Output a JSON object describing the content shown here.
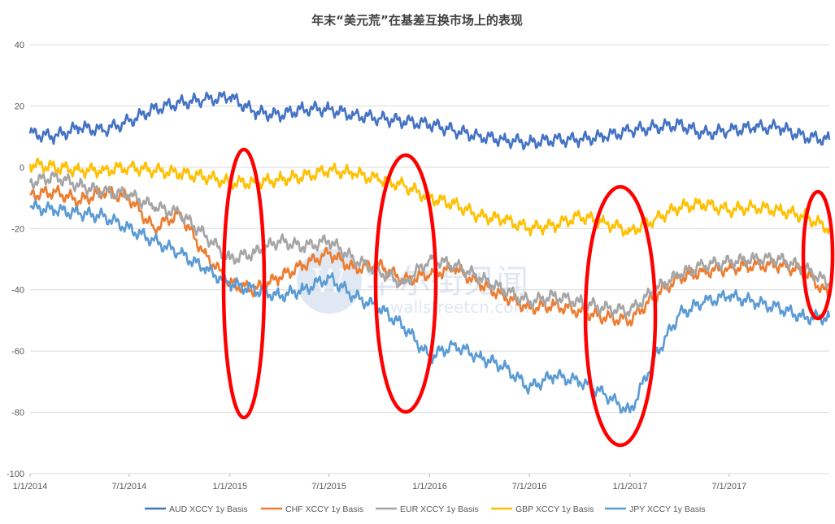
{
  "chart_data": {
    "type": "line",
    "title": "年末“美元荒”在基差互换市场上的表现",
    "xlabel": "",
    "ylabel": "",
    "ylim": [
      -100,
      40
    ],
    "yticks": [
      40,
      20,
      0,
      -20,
      -40,
      -60,
      -80,
      -100
    ],
    "xlim": [
      "2014-01-01",
      "2017-12-31"
    ],
    "xticks": [
      "1/1/2014",
      "7/1/2014",
      "1/1/2015",
      "7/1/2015",
      "1/1/2016",
      "7/1/2016",
      "1/1/2017",
      "7/1/2017"
    ],
    "x": [
      "2014-01-01",
      "2014-02-15",
      "2014-04-01",
      "2014-05-15",
      "2014-07-01",
      "2014-08-15",
      "2014-10-01",
      "2014-11-15",
      "2015-01-01",
      "2015-02-15",
      "2015-04-01",
      "2015-05-15",
      "2015-07-01",
      "2015-08-15",
      "2015-10-01",
      "2015-11-15",
      "2016-01-01",
      "2016-02-15",
      "2016-04-01",
      "2016-05-15",
      "2016-07-01",
      "2016-08-15",
      "2016-10-01",
      "2016-11-15",
      "2017-01-01",
      "2017-02-15",
      "2017-04-01",
      "2017-05-15",
      "2017-07-01",
      "2017-08-15",
      "2017-10-01",
      "2017-11-15",
      "2017-12-31"
    ],
    "grid": true,
    "legend_position": "bottom",
    "series": [
      {
        "name": "AUD XCCY 1y Basis",
        "color": "#4472c4",
        "values": [
          11,
          10,
          13,
          12,
          15,
          19,
          21,
          22,
          23,
          18,
          17,
          19,
          19,
          17,
          16,
          15,
          14,
          12,
          10,
          9,
          8,
          9,
          9,
          10,
          12,
          13,
          14,
          11,
          12,
          13,
          13,
          10,
          9
        ]
      },
      {
        "name": "CHF XCCY 1y Basis",
        "color": "#ed7d31",
        "values": [
          -9,
          -8,
          -11,
          -8,
          -10,
          -20,
          -15,
          -28,
          -38,
          -40,
          -36,
          -32,
          -28,
          -33,
          -32,
          -37,
          -35,
          -33,
          -38,
          -42,
          -46,
          -45,
          -47,
          -49,
          -50,
          -42,
          -36,
          -34,
          -33,
          -32,
          -32,
          -34,
          -42
        ]
      },
      {
        "name": "EUR XCCY 1y Basis",
        "color": "#a5a5a5",
        "values": [
          -5,
          -3,
          -6,
          -8,
          -9,
          -13,
          -15,
          -22,
          -30,
          -28,
          -24,
          -26,
          -24,
          -30,
          -34,
          -38,
          -30,
          -32,
          -36,
          -40,
          -44,
          -42,
          -44,
          -46,
          -47,
          -40,
          -35,
          -32,
          -31,
          -30,
          -30,
          -33,
          -38
        ]
      },
      {
        "name": "GBP XCCY 1y Basis",
        "color": "#ffc000",
        "values": [
          1,
          0,
          -1,
          -1,
          0,
          -1,
          -2,
          -3,
          -5,
          -5,
          -4,
          -3,
          -1,
          -2,
          -4,
          -6,
          -10,
          -12,
          -16,
          -17,
          -20,
          -19,
          -16,
          -18,
          -21,
          -17,
          -13,
          -12,
          -14,
          -13,
          -14,
          -16,
          -20
        ]
      },
      {
        "name": "JPY XCCY 1y Basis",
        "color": "#5b9bd5",
        "values": [
          -13,
          -14,
          -15,
          -16,
          -20,
          -24,
          -28,
          -33,
          -38,
          -40,
          -42,
          -40,
          -36,
          -42,
          -46,
          -52,
          -62,
          -58,
          -62,
          -65,
          -72,
          -68,
          -70,
          -74,
          -80,
          -62,
          -48,
          -44,
          -42,
          -44,
          -46,
          -49,
          -49
        ]
      }
    ]
  }
}
